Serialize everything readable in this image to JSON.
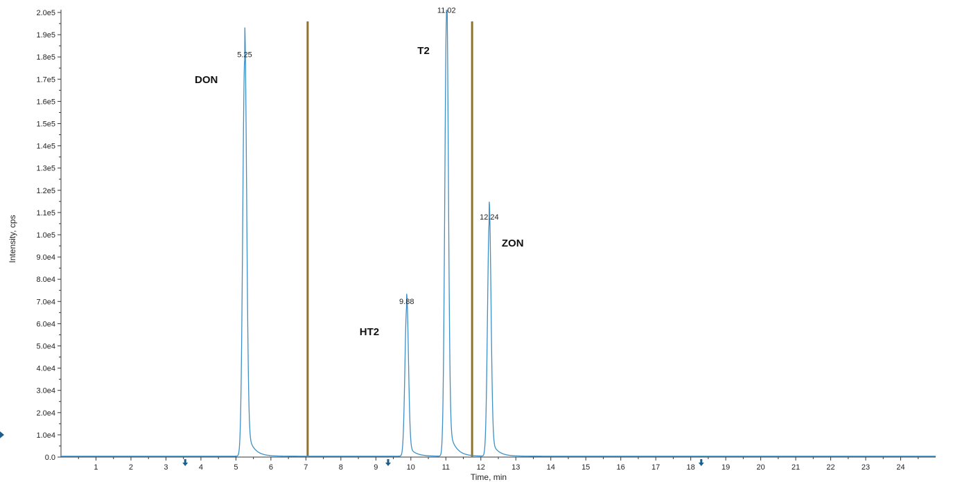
{
  "chart_data": {
    "type": "line",
    "xlabel": "Time, min",
    "ylabel": "Intensity, cps",
    "xlim": [
      0,
      25
    ],
    "ylim": [
      0,
      200000
    ],
    "x_ticks": [
      "1",
      "2",
      "3",
      "4",
      "5",
      "6",
      "7",
      "8",
      "9",
      "10",
      "11",
      "12",
      "13",
      "14",
      "15",
      "16",
      "17",
      "18",
      "19",
      "20",
      "21",
      "22",
      "23",
      "24"
    ],
    "y_ticks": [
      "0.0",
      "1.0e4",
      "2.0e4",
      "3.0e4",
      "4.0e4",
      "5.0e4",
      "6.0e4",
      "7.0e4",
      "8.0e4",
      "9.0e4",
      "1.0e5",
      "1.1e5",
      "1.2e5",
      "1.3e5",
      "1.4e5",
      "1.5e5",
      "1.6e5",
      "1.7e5",
      "1.8e5",
      "1.9e5",
      "2.0e5"
    ],
    "series": [
      {
        "color": "#3d8fc6",
        "peaks": [
          {
            "rt": 5.25,
            "label": "5.25",
            "height": 178000,
            "width": 0.055,
            "compound": "DON"
          },
          {
            "rt": 9.88,
            "label": "9.88",
            "height": 67000,
            "width": 0.05,
            "compound": "HT2"
          },
          {
            "rt": 11.02,
            "label": "11.02",
            "height": 198000,
            "width": 0.05,
            "compound": "T2"
          },
          {
            "rt": 12.24,
            "label": "12.24",
            "height": 105000,
            "width": 0.05,
            "compound": "ZON"
          }
        ]
      }
    ],
    "segment_dividers": [
      7.05,
      11.75
    ],
    "divider_color": "#8b7332",
    "marker_times": [
      3.55,
      9.35,
      18.3
    ],
    "marker_color": "#1c5f8c",
    "grid": false
  }
}
